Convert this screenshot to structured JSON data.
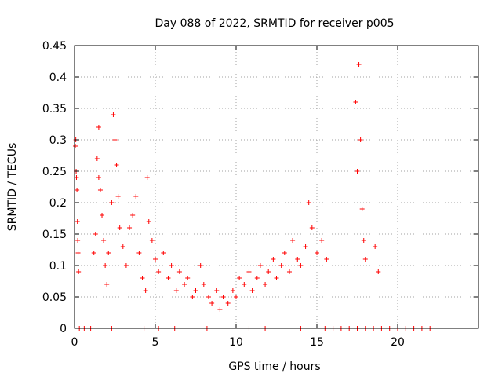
{
  "chart_data": {
    "type": "scatter",
    "title": "Day 088 of 2022, SRMTID for receiver p005",
    "xlabel": "GPS time / hours",
    "ylabel": "SRMTID / TECUs",
    "xlim": [
      0,
      25
    ],
    "ylim": [
      0,
      0.45
    ],
    "xticks": [
      0,
      5,
      10,
      15,
      20
    ],
    "xtick_labels": [
      "0",
      "5",
      "10",
      "15",
      "20"
    ],
    "yticks": [
      0,
      0.05,
      0.1,
      0.15,
      0.2,
      0.25,
      0.3,
      0.35,
      0.4,
      0.45
    ],
    "ytick_labels": [
      "0",
      "0.05",
      "0.1",
      "0.15",
      "0.2",
      "0.25",
      "0.3",
      "0.35",
      "0.4",
      "0.45"
    ],
    "grid": true,
    "marker": "+",
    "color": "#ff0000",
    "series": [
      {
        "name": "SRMTID",
        "points": [
          [
            0.05,
            0.29
          ],
          [
            0.08,
            0.3
          ],
          [
            0.1,
            0.25
          ],
          [
            0.12,
            0.24
          ],
          [
            0.15,
            0.22
          ],
          [
            0.18,
            0.17
          ],
          [
            0.2,
            0.14
          ],
          [
            0.22,
            0.12
          ],
          [
            0.25,
            0.09
          ],
          [
            1.2,
            0.12
          ],
          [
            1.3,
            0.15
          ],
          [
            1.4,
            0.27
          ],
          [
            1.5,
            0.32
          ],
          [
            1.5,
            0.24
          ],
          [
            1.6,
            0.22
          ],
          [
            1.7,
            0.18
          ],
          [
            1.8,
            0.14
          ],
          [
            1.9,
            0.1
          ],
          [
            2.0,
            0.07
          ],
          [
            2.1,
            0.12
          ],
          [
            2.3,
            0.2
          ],
          [
            2.4,
            0.34
          ],
          [
            2.5,
            0.3
          ],
          [
            2.6,
            0.26
          ],
          [
            2.7,
            0.21
          ],
          [
            2.8,
            0.16
          ],
          [
            3.0,
            0.13
          ],
          [
            3.2,
            0.1
          ],
          [
            3.4,
            0.16
          ],
          [
            3.6,
            0.18
          ],
          [
            3.8,
            0.21
          ],
          [
            4.0,
            0.12
          ],
          [
            4.2,
            0.08
          ],
          [
            4.4,
            0.06
          ],
          [
            4.5,
            0.24
          ],
          [
            4.6,
            0.17
          ],
          [
            4.8,
            0.14
          ],
          [
            5.0,
            0.11
          ],
          [
            5.2,
            0.09
          ],
          [
            5.5,
            0.12
          ],
          [
            5.8,
            0.08
          ],
          [
            6.0,
            0.1
          ],
          [
            6.3,
            0.06
          ],
          [
            6.5,
            0.09
          ],
          [
            6.8,
            0.07
          ],
          [
            7.0,
            0.08
          ],
          [
            7.3,
            0.05
          ],
          [
            7.5,
            0.06
          ],
          [
            7.8,
            0.1
          ],
          [
            8.0,
            0.07
          ],
          [
            8.3,
            0.05
          ],
          [
            8.5,
            0.04
          ],
          [
            8.8,
            0.06
          ],
          [
            9.0,
            0.03
          ],
          [
            9.2,
            0.05
          ],
          [
            9.5,
            0.04
          ],
          [
            9.8,
            0.06
          ],
          [
            10.0,
            0.05
          ],
          [
            10.2,
            0.08
          ],
          [
            10.5,
            0.07
          ],
          [
            10.8,
            0.09
          ],
          [
            11.0,
            0.06
          ],
          [
            11.3,
            0.08
          ],
          [
            11.5,
            0.1
          ],
          [
            11.8,
            0.07
          ],
          [
            12.0,
            0.09
          ],
          [
            12.3,
            0.11
          ],
          [
            12.5,
            0.08
          ],
          [
            12.8,
            0.1
          ],
          [
            13.0,
            0.12
          ],
          [
            13.3,
            0.09
          ],
          [
            13.5,
            0.14
          ],
          [
            13.8,
            0.11
          ],
          [
            14.0,
            0.1
          ],
          [
            14.3,
            0.13
          ],
          [
            14.5,
            0.2
          ],
          [
            14.7,
            0.16
          ],
          [
            15.0,
            0.12
          ],
          [
            15.3,
            0.14
          ],
          [
            15.6,
            0.11
          ],
          [
            17.4,
            0.36
          ],
          [
            17.5,
            0.25
          ],
          [
            17.6,
            0.42
          ],
          [
            17.7,
            0.3
          ],
          [
            17.8,
            0.19
          ],
          [
            17.9,
            0.14
          ],
          [
            18.0,
            0.11
          ],
          [
            18.6,
            0.13
          ],
          [
            18.8,
            0.09
          ],
          [
            0.3,
            0.0
          ],
          [
            0.6,
            0.0
          ],
          [
            1.0,
            0.0
          ],
          [
            2.3,
            0.0
          ],
          [
            4.3,
            0.0
          ],
          [
            5.2,
            0.0
          ],
          [
            6.2,
            0.0
          ],
          [
            8.2,
            0.0
          ],
          [
            10.8,
            0.0
          ],
          [
            11.8,
            0.0
          ],
          [
            14.0,
            0.0
          ],
          [
            15.5,
            0.0
          ],
          [
            16.0,
            0.0
          ],
          [
            16.5,
            0.0
          ],
          [
            17.0,
            0.0
          ],
          [
            17.5,
            0.0
          ],
          [
            18.0,
            0.0
          ],
          [
            18.5,
            0.0
          ],
          [
            19.0,
            0.0
          ],
          [
            19.5,
            0.0
          ],
          [
            20.0,
            0.0
          ],
          [
            20.5,
            0.0
          ],
          [
            21.0,
            0.0
          ],
          [
            21.5,
            0.0
          ],
          [
            22.0,
            0.0
          ],
          [
            22.5,
            0.0
          ]
        ]
      }
    ]
  }
}
